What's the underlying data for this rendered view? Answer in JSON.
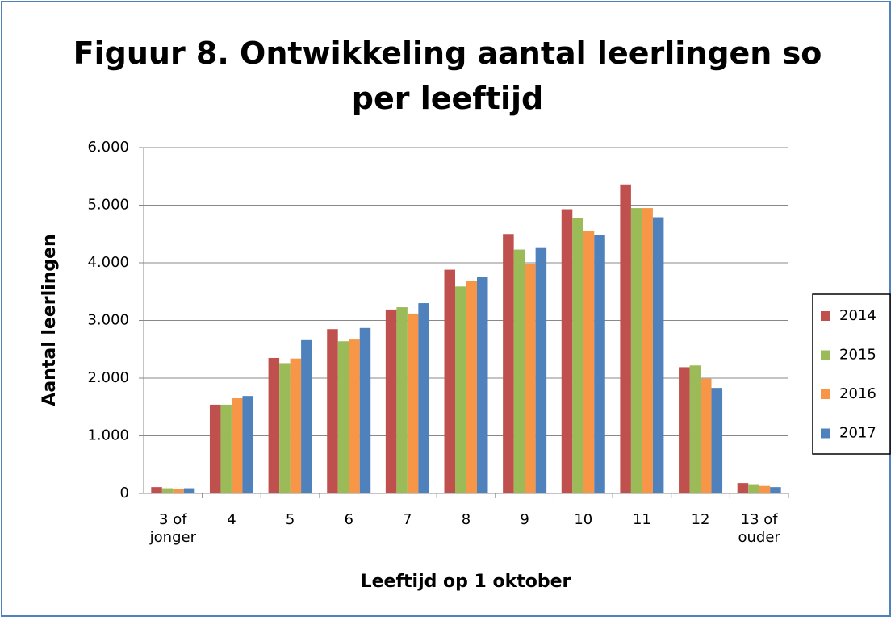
{
  "chart_data": {
    "type": "bar",
    "title": "Figuur 8. Ontwikkeling aantal leerlingen so\nper leeftijd",
    "x_label": "Leeftijd op 1 oktober",
    "y_label": "Aantal leerlingen",
    "categories": [
      "3 of\njonger",
      "4",
      "5",
      "6",
      "7",
      "8",
      "9",
      "10",
      "11",
      "12",
      "13 of\nouder"
    ],
    "series": [
      {
        "name": "2014",
        "color": "#c0504d",
        "values": [
          110,
          1540,
          2350,
          2850,
          3190,
          3880,
          4500,
          4930,
          5360,
          2190,
          180
        ]
      },
      {
        "name": "2015",
        "color": "#9bbb59",
        "values": [
          90,
          1540,
          2260,
          2640,
          3230,
          3590,
          4230,
          4770,
          4950,
          2220,
          160
        ]
      },
      {
        "name": "2016",
        "color": "#f79646",
        "values": [
          70,
          1650,
          2340,
          2670,
          3120,
          3680,
          3980,
          4550,
          4950,
          1990,
          130
        ]
      },
      {
        "name": "2017",
        "color": "#4f81bd",
        "values": [
          90,
          1690,
          2660,
          2870,
          3300,
          3750,
          4270,
          4480,
          4790,
          1830,
          110
        ]
      }
    ],
    "ylim": [
      0,
      6000
    ],
    "yticks": [
      0,
      {
        "value": 1000,
        "label": "1.000"
      },
      {
        "value": 2000,
        "label": "2.000"
      },
      {
        "value": 3000,
        "label": "3.000"
      },
      {
        "value": 4000,
        "label": "4.000"
      },
      {
        "value": 5000,
        "label": "5.000"
      },
      {
        "value": 6000,
        "label": "6.000"
      }
    ],
    "grid": true,
    "legend": "right"
  }
}
